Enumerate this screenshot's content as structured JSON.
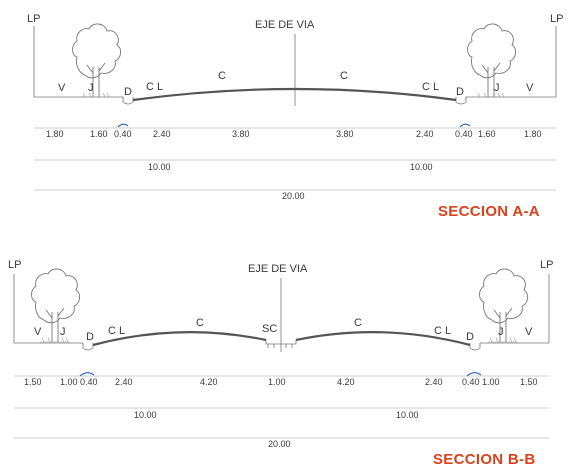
{
  "sections": [
    {
      "title": "SECCION A-A",
      "center_label": "EJE DE VIA",
      "lp_left": "LP",
      "lp_right": "LP",
      "zone_labels": {
        "v_left": "V",
        "j_left": "J",
        "d_left": "D",
        "cl_left": "C L",
        "c_left": "C",
        "c_right": "C",
        "cl_right": "C L",
        "d_right": "D",
        "j_right": "J",
        "v_right": "V"
      },
      "dimensions": [
        "1.80",
        "1.60",
        "0.40",
        "2.40",
        "3.80",
        "3.80",
        "2.40",
        "0.40",
        "1.60",
        "1.80"
      ],
      "halves": [
        "10.00",
        "10.00"
      ],
      "total": "20.00"
    },
    {
      "title": "SECCION B-B",
      "center_label": "EJE DE VIA",
      "lp_left": "LP",
      "lp_right": "LP",
      "median_label": "SC",
      "zone_labels": {
        "v_left": "V",
        "j_left": "J",
        "d_left": "D",
        "cl_left": "C L",
        "c_left": "C",
        "c_right": "C",
        "cl_right": "C L",
        "d_right": "D",
        "j_right": "J",
        "v_right": "V"
      },
      "dimensions": [
        "1.50",
        "1.00",
        "0.40",
        "2.40",
        "4.20",
        "1.00",
        "4.20",
        "2.40",
        "0.40",
        "1.00",
        "1.50"
      ],
      "halves": [
        "10.00",
        "10.00"
      ],
      "total": "20.00"
    }
  ],
  "colors": {
    "title": "#d9421c",
    "accent": "#2a5cc8"
  }
}
